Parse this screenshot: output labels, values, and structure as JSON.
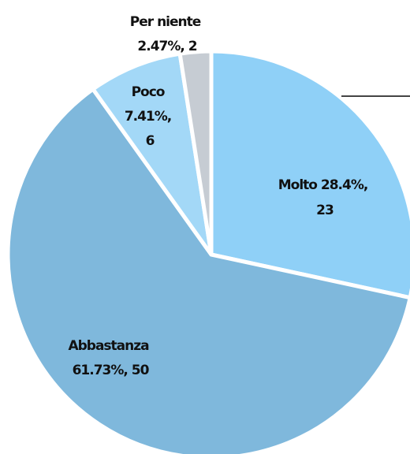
{
  "chart_data": {
    "type": "pie",
    "slices": [
      {
        "label": "Molto",
        "percent": "28.4%",
        "count": 23,
        "value": 28.4,
        "color": "#8fd0f7"
      },
      {
        "label": "Abbastanza",
        "percent": "61.73%",
        "count": 50,
        "value": 61.73,
        "color": "#7fb8dc"
      },
      {
        "label": "Poco",
        "percent": "7.41%",
        "count": 6,
        "value": 7.41,
        "color": "#a3d8f7"
      },
      {
        "label": "Per niente",
        "percent": "2.47%",
        "count": 2,
        "value": 2.47,
        "color": "#c6ccd3"
      }
    ],
    "labels": {
      "molto": [
        "Molto 28.4%,",
        "23"
      ],
      "abbastanza": [
        "Abbastanza",
        "61.73%, 50"
      ],
      "poco": [
        "Poco",
        "7.41%,",
        "6"
      ],
      "per_niente": [
        "Per niente",
        "2.47%, 2"
      ]
    },
    "legend_marker_color": "#444444"
  }
}
